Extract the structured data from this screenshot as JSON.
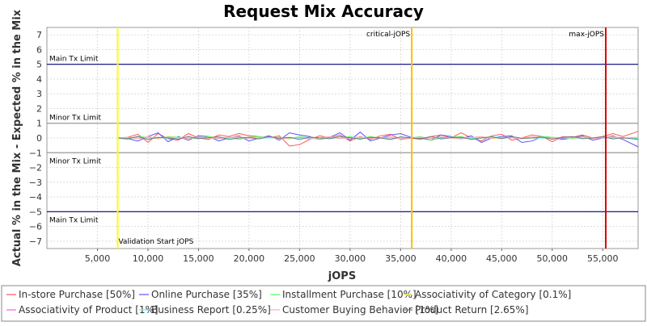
{
  "chart_data": {
    "type": "line",
    "title": "Request Mix Accuracy",
    "xlabel": "jOPS",
    "ylabel": "Actual % in the Mix - Expected % in the Mix",
    "xlim": [
      0,
      58500
    ],
    "ylim": [
      -7.5,
      7.5
    ],
    "x_ticks": [
      5000,
      10000,
      15000,
      20000,
      25000,
      30000,
      35000,
      40000,
      45000,
      50000,
      55000
    ],
    "x_tick_labels": [
      "5,000",
      "10,000",
      "15,000",
      "20,000",
      "25,000",
      "30,000",
      "35,000",
      "40,000",
      "45,000",
      "50,000",
      "55,000"
    ],
    "y_ticks": [
      7,
      6,
      5,
      4,
      3,
      2,
      1,
      0,
      -1,
      -2,
      -3,
      -4,
      -5,
      -6,
      -7
    ],
    "y_tick_labels": [
      "7",
      "6",
      "5",
      "4",
      "3",
      "2",
      "1",
      "0",
      "−1",
      "−2",
      "−3",
      "−4",
      "−5",
      "−6",
      "−7"
    ],
    "grid": true,
    "legend_position": "bottom",
    "horizontal_lines": [
      {
        "label": "Main Tx Limit",
        "y": 5,
        "color": "#000080"
      },
      {
        "label": "Minor Tx Limit",
        "y": 1,
        "color": "#999999"
      },
      {
        "label": "Minor Tx Limit",
        "y": -1,
        "color": "#999999"
      },
      {
        "label": "Main Tx Limit",
        "y": -5,
        "color": "#000080"
      }
    ],
    "vertical_lines": [
      {
        "label": "Validation Start jOPS",
        "x": 7000,
        "color": "#ffff00"
      },
      {
        "label": "critical-jOPS",
        "x": 36100,
        "color": "#ffc000"
      },
      {
        "label": "max-jOPS",
        "x": 55300,
        "color": "#dd0000"
      }
    ],
    "x": [
      7000,
      8000,
      9000,
      10000,
      11000,
      12000,
      13000,
      14000,
      15000,
      16000,
      17000,
      18000,
      19000,
      20000,
      21000,
      22000,
      23000,
      24000,
      25000,
      26000,
      27000,
      28000,
      29000,
      30000,
      31000,
      32000,
      33000,
      34000,
      35000,
      36000,
      37000,
      38000,
      39000,
      40000,
      41000,
      42000,
      43000,
      44000,
      45000,
      46000,
      47000,
      48000,
      49000,
      50000,
      51000,
      52000,
      53000,
      54000,
      55000,
      56000,
      57000,
      58500
    ],
    "series": [
      {
        "name": "In-store Purchase [50%]",
        "color": "#ff5555",
        "values": [
          0,
          0.05,
          0.25,
          -0.3,
          0.3,
          -0.05,
          -0.15,
          0.3,
          0,
          -0.1,
          0.2,
          0.1,
          0.3,
          0.15,
          0.1,
          0,
          0.15,
          -0.55,
          -0.45,
          -0.1,
          0.15,
          0,
          0.2,
          -0.2,
          0.1,
          -0.1,
          0.15,
          0.25,
          -0.1,
          0,
          -0.1,
          0.1,
          0.2,
          0,
          0.35,
          0,
          -0.2,
          0.15,
          0.25,
          -0.15,
          0,
          0.2,
          0.1,
          -0.25,
          0.1,
          0.05,
          0.2,
          0,
          0.1,
          0.3,
          0.1,
          0.45
        ]
      },
      {
        "name": "Online Purchase [35%]",
        "color": "#5555ff",
        "values": [
          0,
          -0.05,
          -0.2,
          0.1,
          0.35,
          -0.25,
          0.1,
          -0.15,
          0.15,
          0.1,
          -0.2,
          0,
          0.15,
          -0.2,
          0,
          0.15,
          -0.15,
          0.35,
          0.2,
          0.1,
          -0.1,
          0.05,
          0.35,
          -0.15,
          0.4,
          -0.2,
          0,
          0.2,
          0.3,
          0.05,
          0,
          -0.15,
          0.2,
          0.1,
          -0.05,
          0.15,
          -0.3,
          0,
          0.1,
          0.15,
          -0.3,
          -0.2,
          0.1,
          0.05,
          -0.1,
          0,
          0.15,
          -0.15,
          0,
          0.15,
          -0.1,
          -0.6
        ]
      },
      {
        "name": "Installment Purchase [10%]",
        "color": "#55ff55",
        "values": [
          0,
          -0.1,
          0.1,
          0.05,
          -0.05,
          0.1,
          0.05,
          0,
          -0.05,
          0.1,
          0,
          0.05,
          -0.1,
          0.05,
          0.1,
          0,
          0.05,
          -0.05,
          0.1,
          0,
          -0.1,
          0.05,
          0,
          0.1,
          -0.05,
          0.1,
          0,
          -0.1,
          0.05,
          0,
          0.1,
          -0.15,
          0,
          0.05,
          0.1,
          -0.05,
          0,
          0.1,
          0,
          0.05,
          -0.05,
          0,
          0.1,
          0.05,
          0,
          -0.05,
          0.1,
          0,
          0.05,
          0.1,
          0,
          -0.05
        ]
      },
      {
        "name": "Associativity of Category [0.1%]",
        "color": "#ffff55",
        "values": [
          0,
          0,
          0.01,
          0,
          -0.01,
          0,
          0.01,
          0,
          0,
          -0.01,
          0,
          0.01,
          0,
          0,
          0.01,
          0,
          -0.01,
          0,
          0,
          0.01,
          0,
          0,
          -0.01,
          0,
          0.01,
          0,
          0,
          0,
          0.01,
          0,
          0,
          -0.01,
          0,
          0,
          0.01,
          0,
          0,
          0,
          -0.01,
          0,
          0,
          0.01,
          0,
          0,
          0,
          -0.01,
          0,
          0,
          0.01,
          0,
          0,
          0
        ]
      },
      {
        "name": "Associativity of Product [1%]",
        "color": "#ff55ff",
        "values": [
          0,
          0.02,
          -0.02,
          0.03,
          -0.01,
          0.02,
          0,
          -0.02,
          0.03,
          0,
          -0.02,
          0.01,
          0.02,
          -0.03,
          0,
          0.02,
          -0.01,
          0.03,
          0,
          -0.02,
          0.01,
          0.03,
          -0.02,
          0,
          0.02,
          -0.01,
          0.03,
          0,
          -0.03,
          0.02,
          0,
          -0.02,
          0.03,
          0.01,
          -0.02,
          0,
          0.02,
          -0.01,
          0.03,
          0,
          -0.02,
          0.01,
          0.02,
          0,
          -0.03,
          0.02,
          0,
          0.01,
          -0.02,
          0.03,
          0,
          0.02
        ]
      },
      {
        "name": "Business Report [0.25%]",
        "color": "#55ffff",
        "values": [
          0,
          0.01,
          -0.01,
          0.02,
          0,
          -0.01,
          0.01,
          0.02,
          -0.02,
          0,
          0.01,
          -0.01,
          0.02,
          0,
          -0.02,
          0.01,
          0,
          0.02,
          -0.01,
          0,
          0.01,
          -0.02,
          0,
          0.02,
          0.01,
          -0.01,
          0,
          0.02,
          -0.01,
          0,
          0.01,
          0.02,
          -0.02,
          0,
          0.01,
          -0.01,
          0.02,
          0,
          -0.01,
          0.01,
          0,
          0.02,
          -0.02,
          0,
          0.01,
          0,
          -0.01,
          0.02,
          0,
          0.01,
          -0.01,
          0
        ]
      },
      {
        "name": "Customer Buying Behavior [1%]",
        "color": "#ffaaaa",
        "values": [
          0,
          0.05,
          -0.05,
          0.1,
          -0.02,
          0.06,
          0.02,
          -0.05,
          0.08,
          0,
          -0.06,
          0.04,
          0.1,
          -0.05,
          0.02,
          0.08,
          -0.04,
          0,
          0.06,
          -0.08,
          0.03,
          0.1,
          -0.05,
          0.02,
          0.07,
          -0.03,
          0,
          0.09,
          -0.06,
          0.02,
          0.05,
          -0.04,
          0.08,
          0,
          -0.07,
          0.04,
          0.1,
          -0.03,
          0.05,
          0,
          -0.06,
          0.08,
          0.02,
          -0.04,
          0.06,
          0,
          0.09,
          -0.05,
          0.03,
          0.1,
          -0.02,
          0.05
        ]
      },
      {
        "name": "Product Return [2.65%]",
        "color": "#777777",
        "values": [
          0,
          -0.05,
          0.1,
          -0.1,
          0.05,
          0,
          -0.08,
          0.1,
          -0.05,
          0.02,
          0.08,
          -0.1,
          0,
          0.05,
          -0.06,
          0.1,
          -0.02,
          0.04,
          -0.1,
          0.06,
          0,
          -0.05,
          0.1,
          0.02,
          -0.08,
          0.05,
          0,
          -0.1,
          0.08,
          0,
          -0.04,
          0.1,
          -0.06,
          0.02,
          0.05,
          -0.1,
          0,
          0.08,
          -0.05,
          0.1,
          -0.02,
          0,
          0.06,
          -0.08,
          0.04,
          0.1,
          -0.05,
          0,
          0.08,
          -0.06,
          0.02,
          -0.1
        ]
      }
    ]
  }
}
